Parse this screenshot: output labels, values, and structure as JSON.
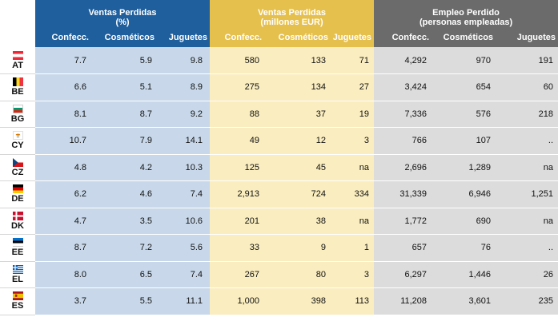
{
  "headers": {
    "group1": {
      "line1": "Ventas Perdidas",
      "line2": "(%)"
    },
    "group2": {
      "line1": "Ventas Perdidas",
      "line2": "(millones EUR)"
    },
    "group3": {
      "line1": "Empleo Perdido",
      "line2": "(personas empleadas)"
    },
    "sub": [
      "Confecc.",
      "Cosméticos",
      "Juguetes",
      "Confecc.",
      "Cosméticos",
      "Juguetes",
      "Confecc.",
      "Cosméticos",
      "Juguetes"
    ]
  },
  "rows": [
    {
      "code": "AT",
      "values": [
        "7.7",
        "5.9",
        "9.8",
        "580",
        "133",
        "71",
        "4,292",
        "970",
        "191"
      ]
    },
    {
      "code": "BE",
      "values": [
        "6.6",
        "5.1",
        "8.9",
        "275",
        "134",
        "27",
        "3,424",
        "654",
        "60"
      ]
    },
    {
      "code": "BG",
      "values": [
        "8.1",
        "8.7",
        "9.2",
        "88",
        "37",
        "19",
        "7,336",
        "576",
        "218"
      ]
    },
    {
      "code": "CY",
      "values": [
        "10.7",
        "7.9",
        "14.1",
        "49",
        "12",
        "3",
        "766",
        "107",
        ".."
      ]
    },
    {
      "code": "CZ",
      "values": [
        "4.8",
        "4.2",
        "10.3",
        "125",
        "45",
        "na",
        "2,696",
        "1,289",
        "na"
      ]
    },
    {
      "code": "DE",
      "values": [
        "6.2",
        "4.6",
        "7.4",
        "2,913",
        "724",
        "334",
        "31,339",
        "6,946",
        "1,251"
      ]
    },
    {
      "code": "DK",
      "values": [
        "4.7",
        "3.5",
        "10.6",
        "201",
        "38",
        "na",
        "1,772",
        "690",
        "na"
      ]
    },
    {
      "code": "EE",
      "values": [
        "8.7",
        "7.2",
        "5.6",
        "33",
        "9",
        "1",
        "657",
        "76",
        ".."
      ]
    },
    {
      "code": "EL",
      "values": [
        "8.0",
        "6.5",
        "7.4",
        "267",
        "80",
        "3",
        "6,297",
        "1,446",
        "26"
      ]
    },
    {
      "code": "ES",
      "values": [
        "3.7",
        "5.5",
        "11.1",
        "1,000",
        "398",
        "113",
        "11,208",
        "3,601",
        "235"
      ]
    }
  ],
  "colors": {
    "blue_header": "#1f5f9e",
    "yellow_header": "#e6c04c",
    "gray_header": "#6b6b6b",
    "blue_cell": "#c8d8ea",
    "yellow_cell": "#faedbf",
    "gray_cell": "#dcdcdc"
  }
}
